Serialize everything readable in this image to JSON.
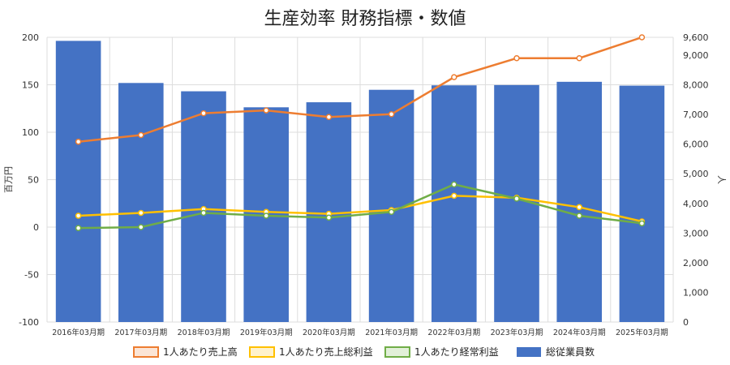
{
  "chart_data": {
    "type": "bar",
    "title": "生産効率 財務指標・数値",
    "categories": [
      "2016年03月期",
      "2017年03月期",
      "2018年03月期",
      "2019年03月期",
      "2020年03月期",
      "2021年03月期",
      "2022年03月期",
      "2023年03月期",
      "2024年03月期",
      "2025年03月期"
    ],
    "ylabel": "百万円",
    "y2label": "人",
    "ylim": [
      -100,
      200
    ],
    "y2lim": [
      0,
      9600
    ],
    "yticks": [
      "200",
      "150",
      "100",
      "50",
      "0",
      "-50",
      "-100"
    ],
    "y2ticks": [
      "9,600",
      "9,000",
      "8,000",
      "7,000",
      "6,000",
      "5,000",
      "4,000",
      "3,000",
      "2,000",
      "1,000",
      "0"
    ],
    "grid": true,
    "legend_position": "bottom",
    "series": [
      {
        "name": "1人あたり売上高",
        "type": "line",
        "axis": "left",
        "color": "#ed7d31",
        "values": [
          90,
          97,
          120,
          123,
          116,
          119,
          158,
          178,
          178,
          200
        ]
      },
      {
        "name": "1人あたり売上総利益",
        "type": "line",
        "axis": "left",
        "color": "#ffc000",
        "values": [
          12,
          15,
          19,
          16,
          14,
          18,
          33,
          31,
          21,
          6
        ]
      },
      {
        "name": "1人あたり経常利益",
        "type": "line",
        "axis": "left",
        "color": "#70ad47",
        "values": [
          -1,
          0,
          15,
          12,
          10,
          16,
          45,
          30,
          12,
          4
        ]
      },
      {
        "name": "総従業員数",
        "type": "bar",
        "axis": "right",
        "color": "#4472c4",
        "values": [
          9480,
          8060,
          7780,
          7240,
          7410,
          7830,
          7980,
          7990,
          8100,
          7970
        ]
      }
    ]
  }
}
